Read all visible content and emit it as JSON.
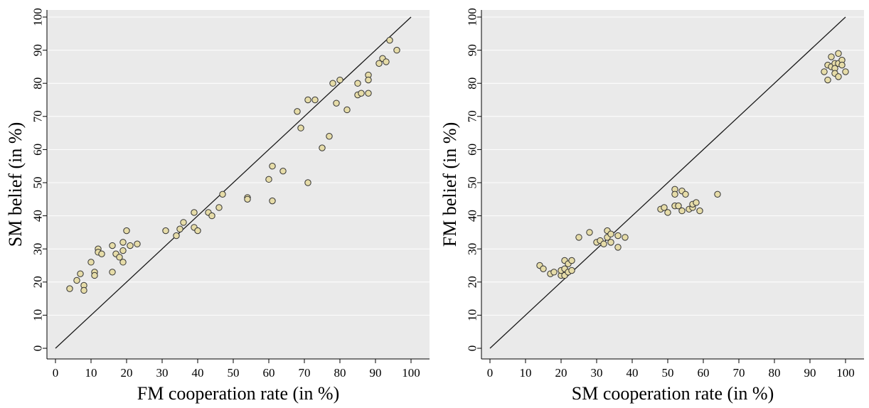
{
  "point_color": "#e6dca8",
  "chart_data": [
    {
      "type": "scatter",
      "title": "",
      "xlabel": "FM cooperation rate (in %)",
      "ylabel": "SM belief (in %)",
      "xlim": [
        0,
        100
      ],
      "ylim": [
        0,
        100
      ],
      "xticks": [
        0,
        10,
        20,
        30,
        40,
        50,
        60,
        70,
        80,
        90,
        100
      ],
      "yticks": [
        0,
        10,
        20,
        30,
        40,
        50,
        60,
        70,
        80,
        90,
        100
      ],
      "grid": true,
      "reference_line": "45-degree line",
      "points": [
        [
          4,
          18
        ],
        [
          6,
          20.5
        ],
        [
          7,
          22.5
        ],
        [
          8,
          19
        ],
        [
          8,
          17.5
        ],
        [
          10,
          26
        ],
        [
          11,
          23
        ],
        [
          11,
          22
        ],
        [
          12,
          30
        ],
        [
          12,
          29
        ],
        [
          13,
          28.5
        ],
        [
          16,
          31
        ],
        [
          16,
          23
        ],
        [
          17,
          28.5
        ],
        [
          18,
          27.5
        ],
        [
          19,
          29.5
        ],
        [
          19,
          26
        ],
        [
          19,
          32
        ],
        [
          20,
          35.5
        ],
        [
          21,
          31
        ],
        [
          23,
          31.5
        ],
        [
          31,
          35.5
        ],
        [
          34,
          34
        ],
        [
          35,
          36
        ],
        [
          36,
          38
        ],
        [
          39,
          41
        ],
        [
          39,
          36.5
        ],
        [
          40,
          35.5
        ],
        [
          43,
          41
        ],
        [
          44,
          40
        ],
        [
          46,
          42.5
        ],
        [
          47,
          46.5
        ],
        [
          54,
          45.5
        ],
        [
          54,
          45
        ],
        [
          60,
          51
        ],
        [
          61,
          55
        ],
        [
          61,
          44.5
        ],
        [
          64,
          53.5
        ],
        [
          68,
          71.5
        ],
        [
          69,
          66.5
        ],
        [
          71,
          75
        ],
        [
          71,
          50
        ],
        [
          73,
          75
        ],
        [
          75,
          60.5
        ],
        [
          77,
          64
        ],
        [
          78,
          80
        ],
        [
          79,
          74
        ],
        [
          80,
          81
        ],
        [
          82,
          72
        ],
        [
          85,
          80
        ],
        [
          85,
          76.5
        ],
        [
          86,
          77
        ],
        [
          88,
          82.5
        ],
        [
          88,
          81
        ],
        [
          88,
          77
        ],
        [
          91,
          86
        ],
        [
          92,
          87.5
        ],
        [
          93,
          86.5
        ],
        [
          94,
          93
        ],
        [
          96,
          90
        ]
      ]
    },
    {
      "type": "scatter",
      "title": "",
      "xlabel": "SM cooperation rate (in %)",
      "ylabel": "FM belief (in %)",
      "xlim": [
        0,
        100
      ],
      "ylim": [
        0,
        100
      ],
      "xticks": [
        0,
        10,
        20,
        30,
        40,
        50,
        60,
        70,
        80,
        90,
        100
      ],
      "yticks": [
        0,
        10,
        20,
        30,
        40,
        50,
        60,
        70,
        80,
        90,
        100
      ],
      "grid": true,
      "reference_line": "45-degree line",
      "points": [
        [
          14,
          25
        ],
        [
          15,
          24
        ],
        [
          17,
          22.5
        ],
        [
          18,
          23
        ],
        [
          20,
          22
        ],
        [
          20,
          23.5
        ],
        [
          21,
          26.5
        ],
        [
          21,
          22
        ],
        [
          21,
          24
        ],
        [
          22,
          25.5
        ],
        [
          22,
          23
        ],
        [
          23,
          26.5
        ],
        [
          23,
          23.5
        ],
        [
          25,
          33.5
        ],
        [
          28,
          35
        ],
        [
          30,
          32
        ],
        [
          31,
          32.5
        ],
        [
          32,
          31.5
        ],
        [
          33,
          35.5
        ],
        [
          33,
          33.5
        ],
        [
          34,
          32
        ],
        [
          34,
          34.5
        ],
        [
          36,
          34
        ],
        [
          36,
          30.5
        ],
        [
          38,
          33.5
        ],
        [
          48,
          42
        ],
        [
          49,
          42.5
        ],
        [
          50,
          41
        ],
        [
          52,
          48
        ],
        [
          52,
          46.5
        ],
        [
          52,
          43
        ],
        [
          53,
          43
        ],
        [
          54,
          41.5
        ],
        [
          54,
          47.5
        ],
        [
          55,
          46.5
        ],
        [
          56,
          42
        ],
        [
          57,
          42.5
        ],
        [
          57,
          43.5
        ],
        [
          58,
          44
        ],
        [
          59,
          41.5
        ],
        [
          64,
          46.5
        ],
        [
          94,
          83.5
        ],
        [
          95,
          85.5
        ],
        [
          95,
          81
        ],
        [
          96,
          88
        ],
        [
          96,
          85
        ],
        [
          97,
          86
        ],
        [
          97,
          84.5
        ],
        [
          97,
          83
        ],
        [
          98,
          89
        ],
        [
          98,
          86
        ],
        [
          98,
          82
        ],
        [
          99,
          87
        ],
        [
          99,
          85.5
        ],
        [
          100,
          83.5
        ]
      ]
    }
  ]
}
